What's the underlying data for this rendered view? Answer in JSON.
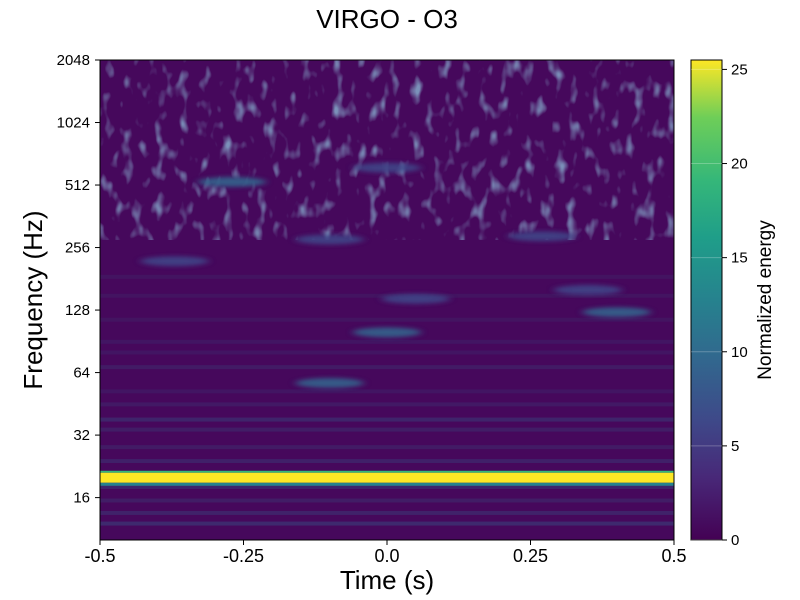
{
  "chart_data": {
    "type": "heatmap",
    "title": "VIRGO - O3",
    "xlabel": "Time (s)",
    "ylabel": "Frequency (Hz)",
    "colorbar_label": "Normalized energy",
    "colormap": "viridis",
    "xlim": [
      -0.5,
      0.5
    ],
    "ylim": [
      10,
      2048
    ],
    "yscale": "log2",
    "x_ticks": [
      "-0.5",
      "-0.25",
      "0.0",
      "0.25",
      "0.5"
    ],
    "x_tick_values": [
      -0.5,
      -0.25,
      0.0,
      0.25,
      0.5
    ],
    "y_ticks": [
      "16",
      "32",
      "64",
      "128",
      "256",
      "512",
      "1024",
      "2048"
    ],
    "y_tick_values": [
      16,
      32,
      64,
      128,
      256,
      512,
      1024,
      2048
    ],
    "colorbar_range": [
      0,
      25.5
    ],
    "colorbar_ticks": [
      "0",
      "5",
      "10",
      "15",
      "20",
      "25"
    ],
    "colorbar_tick_values": [
      0,
      5,
      10,
      15,
      20,
      25
    ],
    "features": [
      {
        "label": "persistent line",
        "frequency_hz": 19.5,
        "time_range_s": [
          -0.5,
          0.5
        ],
        "energy": 25
      },
      {
        "label": "blob",
        "time_s": -0.1,
        "frequency_hz": 57,
        "energy": 9
      },
      {
        "label": "blob",
        "time_s": 0.0,
        "frequency_hz": 100,
        "energy": 8
      },
      {
        "label": "blob",
        "time_s": 0.05,
        "frequency_hz": 145,
        "energy": 6
      },
      {
        "label": "blob",
        "time_s": 0.4,
        "frequency_hz": 125,
        "energy": 8
      },
      {
        "label": "blob",
        "time_s": 0.35,
        "frequency_hz": 160,
        "energy": 5
      },
      {
        "label": "blob",
        "time_s": -0.27,
        "frequency_hz": 530,
        "energy": 8
      },
      {
        "label": "blob",
        "time_s": -0.37,
        "frequency_hz": 220,
        "energy": 5
      },
      {
        "label": "blob",
        "time_s": -0.1,
        "frequency_hz": 280,
        "energy": 5
      },
      {
        "label": "blob",
        "time_s": 0.27,
        "frequency_hz": 290,
        "energy": 6
      },
      {
        "label": "blob",
        "time_s": 0.0,
        "frequency_hz": 620,
        "energy": 6
      }
    ]
  }
}
